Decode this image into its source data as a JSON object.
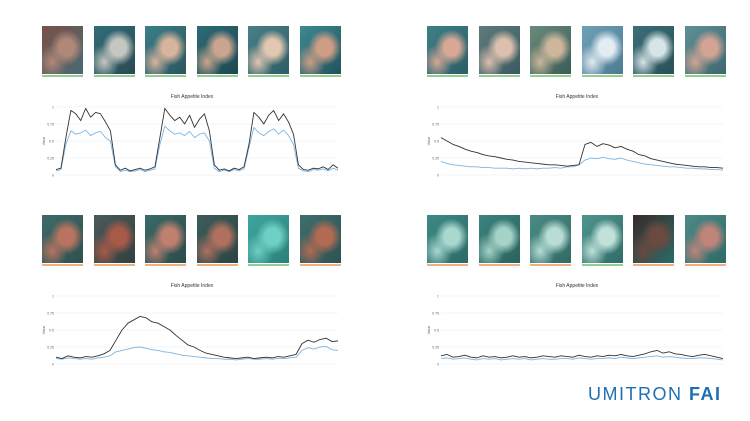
{
  "brand": {
    "name": "UMITRON",
    "product": "FAI",
    "color": "#1e6fb4"
  },
  "panels": [
    {
      "id": "p1",
      "thumb_colors": [
        [
          "#7a5048",
          "#b08878",
          "#486a74"
        ],
        [
          "#2f6f7a",
          "#c7c7c2",
          "#2a4a52"
        ],
        [
          "#3b7f88",
          "#d8b49c",
          "#2b5560"
        ],
        [
          "#2d6b77",
          "#caa690",
          "#1f4850"
        ],
        [
          "#4a7f88",
          "#e2c7b1",
          "#2e5e66"
        ],
        [
          "#3c8a92",
          "#cf9d86",
          "#24525c"
        ]
      ],
      "thumb_bar_colors": [
        "#8fcf8f",
        "#8fcf8f",
        "#8fcf8f",
        "#8fcf8f",
        "#8fcf8f",
        "#8fcf8f"
      ]
    },
    {
      "id": "p2",
      "thumb_colors": [
        [
          "#3f7f86",
          "#d7a896",
          "#2d5d66"
        ],
        [
          "#5e7a7c",
          "#dcc0ae",
          "#3c5a60"
        ],
        [
          "#6a8a7a",
          "#cdb69c",
          "#3b5d58"
        ],
        [
          "#6ea0b8",
          "#e2ecf2",
          "#4d7c92"
        ],
        [
          "#3b6f78",
          "#d7e4e8",
          "#2a4f58"
        ],
        [
          "#5f8f96",
          "#d3a494",
          "#3e6870"
        ]
      ],
      "thumb_bar_colors": [
        "#8fcf8f",
        "#8fcf8f",
        "#8fcf8f",
        "#8fcf8f",
        "#8fcf8f",
        "#8fcf8f"
      ]
    },
    {
      "id": "p3",
      "thumb_colors": [
        [
          "#3f6a6a",
          "#b87460",
          "#2f5050"
        ],
        [
          "#4a5a5a",
          "#a85a48",
          "#334040"
        ],
        [
          "#3a6a68",
          "#c08070",
          "#2c4c4a"
        ],
        [
          "#3c5c5a",
          "#b07060",
          "#2c4444"
        ],
        [
          "#3fa6a0",
          "#6ecfc4",
          "#2c8078"
        ],
        [
          "#3f6e6c",
          "#b46a52",
          "#2e5252"
        ]
      ],
      "thumb_bar_colors": [
        "#f0b080",
        "#f0b080",
        "#f0b080",
        "#f0b080",
        "#8fcf8f",
        "#f0b080"
      ]
    },
    {
      "id": "p4",
      "thumb_colors": [
        [
          "#3d8a86",
          "#a9d8cf",
          "#2c6a66"
        ],
        [
          "#3c847e",
          "#a6d3c8",
          "#2a625c"
        ],
        [
          "#4a8c86",
          "#b7ddd4",
          "#336a64"
        ],
        [
          "#4f9490",
          "#c0e2da",
          "#2f6c68"
        ],
        [
          "#3a2a28",
          "#6a4a40",
          "#2a6c68"
        ],
        [
          "#4c8a88",
          "#c0847a",
          "#2f6a66"
        ]
      ],
      "thumb_bar_colors": [
        "#f0b080",
        "#f0b080",
        "#f0b080",
        "#8fcf8f",
        "#f0b080",
        "#f0b080"
      ]
    }
  ],
  "chart_data": [
    {
      "type": "line",
      "title": "Fish Appetite Index",
      "ylabel": "Value",
      "ylim": [
        0,
        1
      ],
      "yticks": [
        "0",
        "0.25",
        "0.5",
        "0.75",
        "1"
      ],
      "series": [
        {
          "color": "#333333",
          "values": [
            0.08,
            0.1,
            0.55,
            0.95,
            0.9,
            0.8,
            0.98,
            0.85,
            0.92,
            0.9,
            0.78,
            0.65,
            0.15,
            0.07,
            0.1,
            0.06,
            0.08,
            0.1,
            0.07,
            0.09,
            0.12,
            0.55,
            0.98,
            0.88,
            0.8,
            0.85,
            0.75,
            0.88,
            0.7,
            0.82,
            0.9,
            0.65,
            0.15,
            0.07,
            0.09,
            0.06,
            0.1,
            0.08,
            0.12,
            0.45,
            0.92,
            0.85,
            0.75,
            0.88,
            0.95,
            0.8,
            0.9,
            0.78,
            0.6,
            0.15,
            0.08,
            0.07,
            0.1,
            0.09,
            0.12,
            0.08,
            0.15,
            0.1
          ]
        },
        {
          "color": "#7ab6e6",
          "values": [
            0.06,
            0.08,
            0.45,
            0.65,
            0.6,
            0.62,
            0.66,
            0.58,
            0.62,
            0.64,
            0.55,
            0.5,
            0.12,
            0.05,
            0.07,
            0.05,
            0.06,
            0.08,
            0.05,
            0.07,
            0.09,
            0.45,
            0.72,
            0.65,
            0.6,
            0.62,
            0.58,
            0.64,
            0.55,
            0.6,
            0.62,
            0.5,
            0.1,
            0.05,
            0.07,
            0.05,
            0.08,
            0.06,
            0.09,
            0.4,
            0.7,
            0.62,
            0.58,
            0.64,
            0.68,
            0.6,
            0.66,
            0.58,
            0.45,
            0.1,
            0.06,
            0.05,
            0.08,
            0.07,
            0.09,
            0.06,
            0.1,
            0.07
          ]
        }
      ]
    },
    {
      "type": "line",
      "title": "Fish Appetite Index",
      "ylabel": "Value",
      "ylim": [
        0,
        1
      ],
      "yticks": [
        "0",
        "0.25",
        "0.5",
        "0.75",
        "1"
      ],
      "series": [
        {
          "color": "#333333",
          "values": [
            0.55,
            0.5,
            0.45,
            0.42,
            0.38,
            0.35,
            0.33,
            0.3,
            0.28,
            0.27,
            0.25,
            0.23,
            0.22,
            0.2,
            0.19,
            0.18,
            0.17,
            0.16,
            0.15,
            0.15,
            0.14,
            0.13,
            0.14,
            0.15,
            0.45,
            0.48,
            0.42,
            0.46,
            0.44,
            0.4,
            0.42,
            0.38,
            0.35,
            0.3,
            0.28,
            0.24,
            0.22,
            0.2,
            0.18,
            0.16,
            0.15,
            0.14,
            0.13,
            0.12,
            0.12,
            0.11,
            0.11,
            0.1
          ]
        },
        {
          "color": "#7ab6e6",
          "values": [
            0.2,
            0.17,
            0.15,
            0.14,
            0.13,
            0.12,
            0.12,
            0.11,
            0.11,
            0.1,
            0.1,
            0.1,
            0.09,
            0.1,
            0.09,
            0.1,
            0.09,
            0.1,
            0.1,
            0.11,
            0.1,
            0.12,
            0.12,
            0.15,
            0.22,
            0.25,
            0.24,
            0.26,
            0.24,
            0.23,
            0.25,
            0.22,
            0.2,
            0.18,
            0.16,
            0.15,
            0.14,
            0.13,
            0.12,
            0.12,
            0.11,
            0.1,
            0.1,
            0.09,
            0.09,
            0.08,
            0.08,
            0.07
          ]
        }
      ]
    },
    {
      "type": "line",
      "title": "Fish Appetite Index",
      "ylabel": "Value",
      "ylim": [
        0,
        1
      ],
      "yticks": [
        "0",
        "0.25",
        "0.5",
        "0.75",
        "1"
      ],
      "series": [
        {
          "color": "#333333",
          "values": [
            0.1,
            0.08,
            0.12,
            0.1,
            0.09,
            0.11,
            0.1,
            0.12,
            0.15,
            0.2,
            0.35,
            0.5,
            0.6,
            0.65,
            0.7,
            0.68,
            0.62,
            0.6,
            0.55,
            0.5,
            0.42,
            0.35,
            0.28,
            0.25,
            0.2,
            0.16,
            0.14,
            0.12,
            0.1,
            0.09,
            0.08,
            0.09,
            0.1,
            0.08,
            0.09,
            0.1,
            0.09,
            0.11,
            0.1,
            0.12,
            0.14,
            0.3,
            0.35,
            0.32,
            0.36,
            0.38,
            0.33,
            0.34
          ]
        },
        {
          "color": "#7ab6e6",
          "values": [
            0.08,
            0.07,
            0.09,
            0.08,
            0.07,
            0.08,
            0.07,
            0.09,
            0.1,
            0.12,
            0.18,
            0.2,
            0.22,
            0.24,
            0.25,
            0.23,
            0.21,
            0.2,
            0.18,
            0.17,
            0.15,
            0.13,
            0.12,
            0.11,
            0.1,
            0.09,
            0.08,
            0.08,
            0.07,
            0.07,
            0.06,
            0.07,
            0.08,
            0.07,
            0.07,
            0.08,
            0.07,
            0.08,
            0.08,
            0.09,
            0.1,
            0.2,
            0.24,
            0.22,
            0.25,
            0.26,
            0.21,
            0.2
          ]
        }
      ]
    },
    {
      "type": "line",
      "title": "Fish Appetite Index",
      "ylabel": "Value",
      "ylim": [
        0,
        1
      ],
      "yticks": [
        "0",
        "0.25",
        "0.5",
        "0.75",
        "1"
      ],
      "series": [
        {
          "color": "#333333",
          "values": [
            0.12,
            0.14,
            0.1,
            0.11,
            0.13,
            0.1,
            0.09,
            0.12,
            0.1,
            0.11,
            0.09,
            0.1,
            0.12,
            0.1,
            0.11,
            0.09,
            0.1,
            0.12,
            0.11,
            0.1,
            0.12,
            0.11,
            0.1,
            0.13,
            0.11,
            0.1,
            0.12,
            0.11,
            0.13,
            0.12,
            0.14,
            0.12,
            0.11,
            0.13,
            0.15,
            0.18,
            0.2,
            0.16,
            0.18,
            0.15,
            0.14,
            0.12,
            0.11,
            0.13,
            0.14,
            0.12,
            0.1,
            0.08
          ]
        },
        {
          "color": "#7ab6e6",
          "values": [
            0.08,
            0.09,
            0.07,
            0.08,
            0.09,
            0.07,
            0.06,
            0.08,
            0.07,
            0.08,
            0.06,
            0.07,
            0.08,
            0.07,
            0.08,
            0.06,
            0.07,
            0.08,
            0.07,
            0.07,
            0.08,
            0.08,
            0.07,
            0.09,
            0.08,
            0.07,
            0.08,
            0.08,
            0.09,
            0.08,
            0.1,
            0.09,
            0.08,
            0.09,
            0.1,
            0.11,
            0.12,
            0.1,
            0.11,
            0.1,
            0.09,
            0.08,
            0.08,
            0.09,
            0.09,
            0.08,
            0.07,
            0.06
          ]
        }
      ]
    }
  ]
}
